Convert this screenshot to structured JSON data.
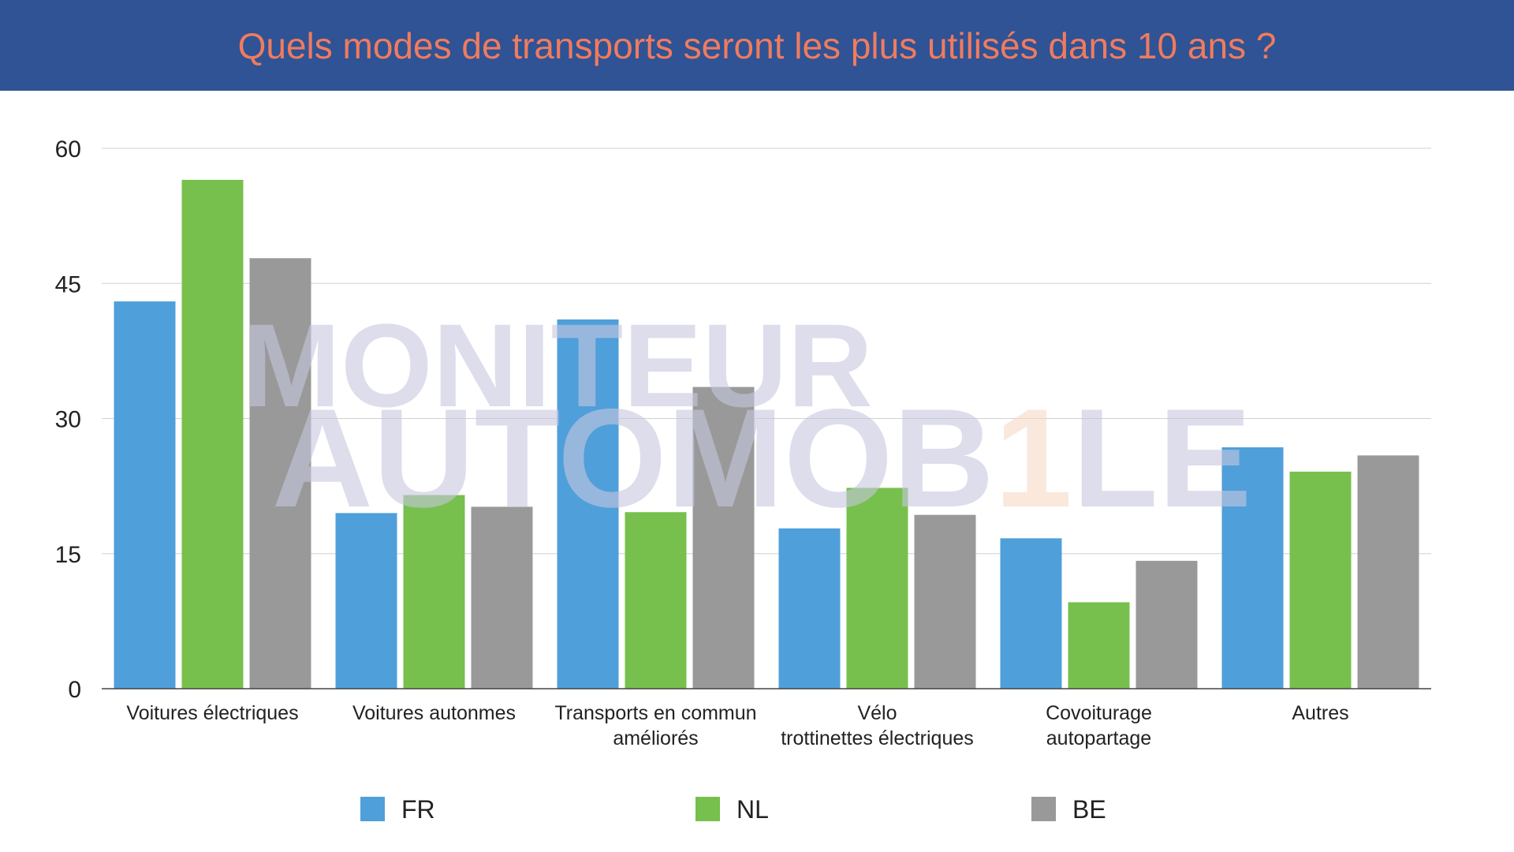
{
  "header": {
    "title": "Quels modes de transports seront les plus utilisés dans 10 ans ?",
    "background_color": "#2f5394",
    "title_color": "#f07b5f"
  },
  "watermark": {
    "line1": "MONITEUR",
    "line2_part1": "AUTOMOB",
    "line2_highlight": "1",
    "line2_part2": "LE",
    "color": "#c7c8e0",
    "highlight_color": "#f8d9c6"
  },
  "chart_data": {
    "type": "bar",
    "title": "Quels modes de transports seront les plus utilisés dans 10 ans ?",
    "xlabel": "",
    "ylabel": "",
    "ylim": [
      0,
      60
    ],
    "yticks": [
      0,
      15,
      30,
      45,
      60
    ],
    "grid": true,
    "legend_position": "bottom",
    "categories": [
      [
        "Voitures électriques"
      ],
      [
        "Voitures autonmes"
      ],
      [
        "Transports en commun",
        "améliorés"
      ],
      [
        "Vélo",
        "trottinettes électriques"
      ],
      [
        "Covoiturage",
        "autopartage"
      ],
      [
        "Autres"
      ]
    ],
    "series": [
      {
        "name": "FR",
        "color": "#4f9fda",
        "values": [
          43,
          19.5,
          41,
          17.8,
          16.7,
          26.8
        ]
      },
      {
        "name": "NL",
        "color": "#77c04d",
        "values": [
          56.5,
          21.5,
          19.6,
          22.3,
          9.6,
          24.1
        ]
      },
      {
        "name": "BE",
        "color": "#999999",
        "values": [
          47.8,
          20.2,
          33.5,
          19.3,
          14.2,
          25.9
        ]
      }
    ]
  }
}
